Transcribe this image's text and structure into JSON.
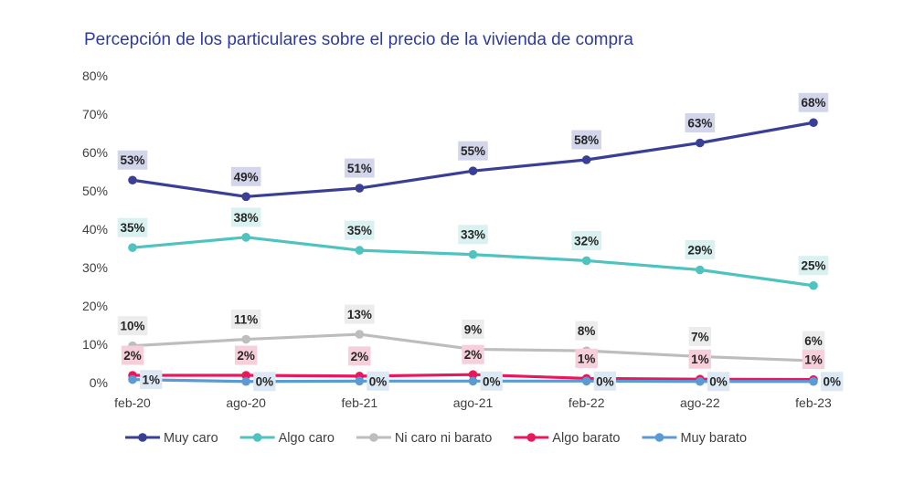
{
  "chart_data": {
    "type": "line",
    "title": "Percepción de los particulares sobre el precio de la vivienda de compra",
    "xlabel": "",
    "ylabel": "",
    "categories": [
      "feb-20",
      "ago-20",
      "feb-21",
      "ago-21",
      "feb-22",
      "ago-22",
      "feb-23"
    ],
    "ylim": [
      0,
      80
    ],
    "yticks": [
      0,
      10,
      20,
      30,
      40,
      50,
      60,
      70,
      80
    ],
    "ytick_labels": [
      "0%",
      "10%",
      "20%",
      "30%",
      "40%",
      "50%",
      "60%",
      "70%",
      "80%"
    ],
    "grid": false,
    "legend_position": "bottom",
    "series": [
      {
        "name": "Muy caro",
        "color": "#3a3f96",
        "label_bg": "#d3d5eb",
        "label_pos": "above",
        "values": [
          52.8,
          48.5,
          50.7,
          55.2,
          58.1,
          62.5,
          67.8
        ],
        "labels": [
          "53%",
          "49%",
          "51%",
          "55%",
          "58%",
          "63%",
          "68%"
        ]
      },
      {
        "name": "Algo caro",
        "color": "#4ec3bf",
        "label_bg": "#d9f1f0",
        "label_pos": "above",
        "values": [
          35.2,
          37.9,
          34.5,
          33.4,
          31.8,
          29.4,
          25.3
        ],
        "labels": [
          "35%",
          "38%",
          "35%",
          "33%",
          "32%",
          "29%",
          "25%"
        ]
      },
      {
        "name": "Ni caro ni barato",
        "color": "#bdbdbd",
        "label_bg": "#ececec",
        "label_pos": "above",
        "values": [
          9.6,
          11.3,
          12.6,
          8.7,
          8.3,
          6.8,
          5.7
        ],
        "labels": [
          "10%",
          "11%",
          "13%",
          "9%",
          "8%",
          "7%",
          "6%"
        ]
      },
      {
        "name": "Algo barato",
        "color": "#e8185a",
        "label_bg": "#f6cfdb",
        "label_pos": "above",
        "values": [
          1.9,
          1.9,
          1.7,
          2.1,
          1.1,
          0.9,
          0.8
        ],
        "labels": [
          "2%",
          "2%",
          "2%",
          "2%",
          "1%",
          "1%",
          "1%"
        ]
      },
      {
        "name": "Muy barato",
        "color": "#5b9bd5",
        "label_bg": "#dce9f5",
        "label_pos": "right",
        "values": [
          0.8,
          0.3,
          0.4,
          0.4,
          0.4,
          0.3,
          0.3
        ],
        "labels": [
          "1%",
          "0%",
          "0%",
          "0%",
          "0%",
          "0%",
          "0%"
        ]
      }
    ]
  }
}
